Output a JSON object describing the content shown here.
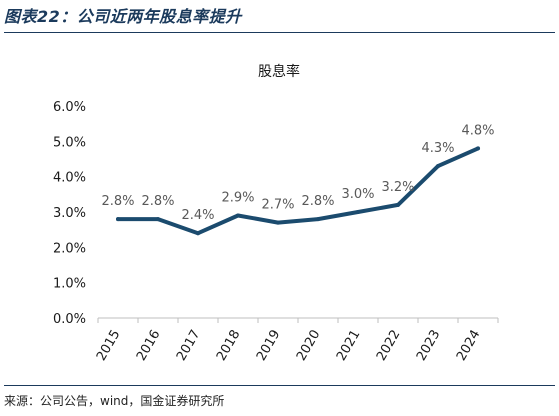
{
  "figure": {
    "title": "图表22：公司近两年股息率提升",
    "source": "来源：公司公告，wind，国金证券研究所"
  },
  "colors": {
    "line": "#1b4b6e",
    "header_rule": "#1b3a5c",
    "data_label": "#595959",
    "axis_text": "#1a1a1a"
  },
  "chart_data": {
    "type": "line",
    "title": "股息率",
    "x": [
      "2015",
      "2016",
      "2017",
      "2018",
      "2019",
      "2020",
      "2021",
      "2022",
      "2023",
      "2024"
    ],
    "series": [
      {
        "values": [
          2.8,
          2.8,
          2.4,
          2.9,
          2.7,
          2.8,
          3.0,
          3.2,
          4.3,
          4.8
        ],
        "labels": [
          "2.8%",
          "2.8%",
          "2.4%",
          "2.9%",
          "2.7%",
          "2.8%",
          "3.0%",
          "3.2%",
          "4.3%",
          "4.8%"
        ]
      }
    ],
    "yticks": [
      0,
      1,
      2,
      3,
      4,
      5,
      6
    ],
    "ytick_labels": [
      "0.0%",
      "1.0%",
      "2.0%",
      "3.0%",
      "4.0%",
      "5.0%",
      "6.0%"
    ],
    "ylim": [
      0,
      6
    ],
    "grid": false,
    "legend": "none"
  }
}
